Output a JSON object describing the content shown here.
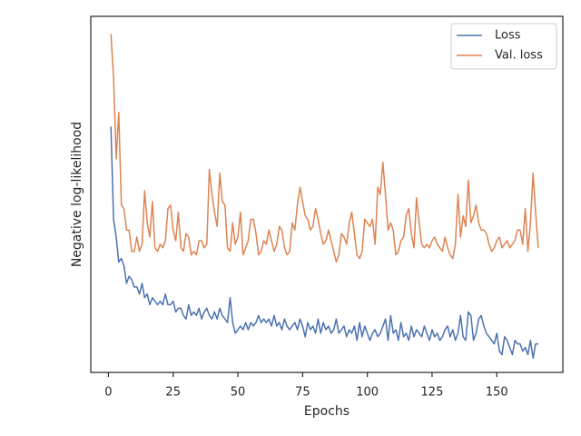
{
  "chart_data": {
    "type": "line",
    "x_label": "Epochs",
    "y_label": "Negative log-likelihood",
    "x": [
      1,
      2,
      3,
      4,
      5,
      6,
      7,
      8,
      9,
      10,
      11,
      12,
      13,
      14,
      15,
      16,
      17,
      18,
      19,
      20,
      21,
      22,
      23,
      24,
      25,
      26,
      27,
      28,
      29,
      30,
      31,
      32,
      33,
      34,
      35,
      36,
      37,
      38,
      39,
      40,
      41,
      42,
      43,
      44,
      45,
      46,
      47,
      48,
      49,
      50,
      51,
      52,
      53,
      54,
      55,
      56,
      57,
      58,
      59,
      60,
      61,
      62,
      63,
      64,
      65,
      66,
      67,
      68,
      69,
      70,
      71,
      72,
      73,
      74,
      75,
      76,
      77,
      78,
      79,
      80,
      81,
      82,
      83,
      84,
      85,
      86,
      87,
      88,
      89,
      90,
      91,
      92,
      93,
      94,
      95,
      96,
      97,
      98,
      99,
      100,
      101,
      102,
      103,
      104,
      105,
      106,
      107,
      108,
      109,
      110,
      111,
      112,
      113,
      114,
      115,
      116,
      117,
      118,
      119,
      120,
      121,
      122,
      123,
      124,
      125,
      126,
      127,
      128,
      129,
      130,
      131,
      132,
      133,
      134,
      135,
      136,
      137,
      138,
      139,
      140,
      141,
      142,
      143,
      144,
      145,
      146,
      147,
      148,
      149,
      150,
      151,
      152,
      153,
      154,
      155,
      156,
      157,
      158,
      159,
      160,
      161,
      162,
      163,
      164,
      165,
      166
    ],
    "series": [
      {
        "name": "Loss",
        "color": "#4c72b0",
        "values": [
          69,
          43,
          38,
          31,
          32,
          30,
          25,
          27,
          26,
          24,
          24,
          22,
          25,
          21,
          22,
          19,
          21,
          20,
          19,
          20,
          19,
          22,
          19,
          19,
          20,
          17,
          18,
          18,
          16,
          15,
          19,
          16,
          17,
          16,
          18,
          15,
          17,
          18,
          16,
          15,
          17,
          15,
          18,
          16,
          15,
          14,
          21,
          14,
          11,
          12,
          13,
          12,
          14,
          12,
          14,
          13,
          14,
          16,
          14,
          15,
          14,
          15,
          13,
          16,
          13,
          14,
          12,
          15,
          13,
          12,
          13,
          14,
          12,
          15,
          13,
          10,
          14,
          12,
          13,
          11,
          15,
          11,
          14,
          12,
          13,
          11,
          12,
          15,
          11,
          12,
          13,
          10,
          12,
          11,
          13,
          9,
          14,
          10,
          13,
          11,
          9,
          11,
          12,
          10,
          11,
          13,
          15,
          9,
          16,
          11,
          12,
          9,
          14,
          10,
          11,
          9,
          13,
          10,
          12,
          11,
          10,
          13,
          11,
          9,
          12,
          10,
          11,
          9,
          10,
          12,
          13,
          10,
          12,
          9,
          11,
          16,
          10,
          9,
          17,
          16,
          9,
          11,
          15,
          16,
          13,
          11,
          10,
          9,
          8,
          11,
          6,
          5,
          10,
          9,
          7,
          5,
          9,
          8,
          8,
          6,
          7,
          5,
          9,
          4,
          8,
          8
        ]
      },
      {
        "name": "Val. loss",
        "color": "#dd8452",
        "values": [
          95,
          83,
          60,
          73,
          47,
          46,
          40,
          40,
          34,
          34,
          38,
          34,
          36,
          51,
          42,
          38,
          48,
          35,
          34,
          36,
          35,
          37,
          46,
          47,
          40,
          37,
          45,
          35,
          34,
          39,
          38,
          33,
          34,
          33,
          37,
          37,
          35,
          36,
          57,
          50,
          45,
          41,
          56,
          48,
          47,
          35,
          34,
          42,
          36,
          38,
          45,
          33,
          35,
          37,
          43,
          43,
          39,
          33,
          34,
          37,
          36,
          40,
          37,
          34,
          36,
          41,
          40,
          35,
          33,
          34,
          42,
          40,
          47,
          52,
          48,
          44,
          43,
          40,
          41,
          46,
          43,
          39,
          36,
          37,
          40,
          37,
          34,
          31,
          33,
          39,
          38,
          36,
          42,
          45,
          39,
          33,
          32,
          34,
          43,
          42,
          41,
          43,
          36,
          52,
          50,
          59,
          50,
          40,
          42,
          40,
          33,
          34,
          37,
          38,
          44,
          46,
          39,
          35,
          49,
          42,
          36,
          35,
          36,
          35,
          37,
          38,
          36,
          35,
          34,
          38,
          35,
          33,
          32,
          36,
          50,
          38,
          44,
          41,
          54,
          42,
          44,
          47,
          42,
          40,
          40,
          39,
          36,
          34,
          35,
          37,
          38,
          35,
          36,
          37,
          35,
          36,
          37,
          40,
          40,
          36,
          46,
          34,
          42,
          56,
          45,
          35
        ]
      }
    ],
    "xlim": [
      -6.8,
      175.5
    ],
    "xticks": [
      0,
      25,
      50,
      75,
      100,
      125,
      150
    ],
    "ylim": [
      0,
      100
    ],
    "legend": "upper right"
  }
}
